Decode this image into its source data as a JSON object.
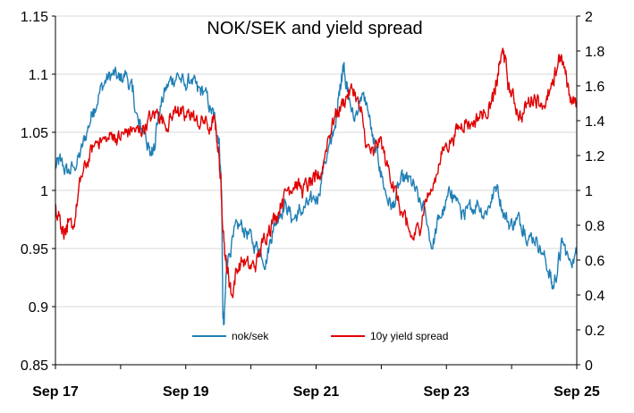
{
  "chart_data": {
    "type": "line",
    "title": "NOK/SEK and yield spread",
    "grid": true,
    "legend_position": "bottom-center",
    "x_ticks": [
      "Sep 17",
      "Sep 19",
      "Sep 21",
      "Sep 23",
      "Sep 25"
    ],
    "x_range": [
      2017.67,
      2025.67
    ],
    "y_left": {
      "range": [
        0.85,
        1.15
      ],
      "ticks": [
        "0.85",
        "0.9",
        "0.95",
        "1",
        "1.05",
        "1.1",
        "1.15"
      ]
    },
    "y_right": {
      "range": [
        0,
        2
      ],
      "ticks": [
        "0",
        "0.2",
        "0.4",
        "0.6",
        "0.8",
        "1",
        "1.2",
        "1.4",
        "1.6",
        "1.8",
        "2"
      ]
    },
    "series": [
      {
        "name": "nok/sek",
        "axis": "left",
        "color": "#1f7fb5",
        "points": [
          [
            2017.67,
            1.02
          ],
          [
            2017.75,
            1.025
          ],
          [
            2017.85,
            1.015
          ],
          [
            2017.95,
            1.02
          ],
          [
            2018.05,
            1.03
          ],
          [
            2018.15,
            1.05
          ],
          [
            2018.25,
            1.07
          ],
          [
            2018.35,
            1.085
          ],
          [
            2018.45,
            1.095
          ],
          [
            2018.55,
            1.1
          ],
          [
            2018.65,
            1.095
          ],
          [
            2018.75,
            1.1
          ],
          [
            2018.85,
            1.085
          ],
          [
            2018.95,
            1.055
          ],
          [
            2019.05,
            1.05
          ],
          [
            2019.12,
            1.03
          ],
          [
            2019.18,
            1.04
          ],
          [
            2019.25,
            1.065
          ],
          [
            2019.35,
            1.085
          ],
          [
            2019.45,
            1.095
          ],
          [
            2019.55,
            1.1
          ],
          [
            2019.65,
            1.09
          ],
          [
            2019.75,
            1.095
          ],
          [
            2019.85,
            1.085
          ],
          [
            2019.95,
            1.085
          ],
          [
            2020.05,
            1.07
          ],
          [
            2020.12,
            1.06
          ],
          [
            2020.18,
            1.045
          ],
          [
            2020.22,
            1.0
          ],
          [
            2020.24,
            0.89
          ],
          [
            2020.26,
            0.885
          ],
          [
            2020.3,
            0.94
          ],
          [
            2020.4,
            0.96
          ],
          [
            2020.5,
            0.97
          ],
          [
            2020.6,
            0.965
          ],
          [
            2020.7,
            0.955
          ],
          [
            2020.8,
            0.95
          ],
          [
            2020.9,
            0.94
          ],
          [
            2021.0,
            0.965
          ],
          [
            2021.1,
            0.98
          ],
          [
            2021.2,
            0.99
          ],
          [
            2021.3,
            0.975
          ],
          [
            2021.4,
            0.98
          ],
          [
            2021.5,
            0.985
          ],
          [
            2021.6,
            0.99
          ],
          [
            2021.7,
            0.995
          ],
          [
            2021.8,
            1.025
          ],
          [
            2021.9,
            1.04
          ],
          [
            2022.0,
            1.07
          ],
          [
            2022.06,
            1.1
          ],
          [
            2022.1,
            1.11
          ],
          [
            2022.15,
            1.085
          ],
          [
            2022.25,
            1.06
          ],
          [
            2022.35,
            1.08
          ],
          [
            2022.45,
            1.075
          ],
          [
            2022.55,
            1.04
          ],
          [
            2022.65,
            1.02
          ],
          [
            2022.75,
            0.995
          ],
          [
            2022.85,
            0.985
          ],
          [
            2022.95,
            1.005
          ],
          [
            2023.05,
            1.01
          ],
          [
            2023.15,
            1.005
          ],
          [
            2023.25,
            0.99
          ],
          [
            2023.35,
            0.98
          ],
          [
            2023.45,
            0.95
          ],
          [
            2023.55,
            0.975
          ],
          [
            2023.65,
            0.985
          ],
          [
            2023.75,
            1.0
          ],
          [
            2023.85,
            0.99
          ],
          [
            2023.95,
            0.975
          ],
          [
            2024.05,
            0.985
          ],
          [
            2024.15,
            0.99
          ],
          [
            2024.25,
            0.98
          ],
          [
            2024.35,
            0.99
          ],
          [
            2024.45,
            1.005
          ],
          [
            2024.55,
            0.98
          ],
          [
            2024.65,
            0.97
          ],
          [
            2024.75,
            0.975
          ],
          [
            2024.85,
            0.97
          ],
          [
            2024.95,
            0.96
          ],
          [
            2025.05,
            0.96
          ],
          [
            2025.15,
            0.945
          ],
          [
            2025.25,
            0.93
          ],
          [
            2025.3,
            0.915
          ],
          [
            2025.38,
            0.935
          ],
          [
            2025.45,
            0.955
          ],
          [
            2025.55,
            0.94
          ],
          [
            2025.67,
            0.945
          ]
        ]
      },
      {
        "name": "10y yield spread",
        "axis": "right",
        "color": "#e00000",
        "points": [
          [
            2017.67,
            0.92
          ],
          [
            2017.72,
            0.88
          ],
          [
            2017.78,
            0.78
          ],
          [
            2017.85,
            0.76
          ],
          [
            2017.95,
            0.8
          ],
          [
            2018.05,
            1.05
          ],
          [
            2018.15,
            1.15
          ],
          [
            2018.25,
            1.25
          ],
          [
            2018.35,
            1.3
          ],
          [
            2018.45,
            1.28
          ],
          [
            2018.55,
            1.32
          ],
          [
            2018.65,
            1.3
          ],
          [
            2018.75,
            1.33
          ],
          [
            2018.85,
            1.35
          ],
          [
            2018.95,
            1.33
          ],
          [
            2019.05,
            1.38
          ],
          [
            2019.15,
            1.42
          ],
          [
            2019.25,
            1.45
          ],
          [
            2019.35,
            1.38
          ],
          [
            2019.45,
            1.42
          ],
          [
            2019.55,
            1.48
          ],
          [
            2019.65,
            1.4
          ],
          [
            2019.75,
            1.45
          ],
          [
            2019.85,
            1.38
          ],
          [
            2019.95,
            1.4
          ],
          [
            2020.05,
            1.35
          ],
          [
            2020.12,
            1.4
          ],
          [
            2020.18,
            1.2
          ],
          [
            2020.22,
            0.95
          ],
          [
            2020.28,
            0.6
          ],
          [
            2020.33,
            0.5
          ],
          [
            2020.38,
            0.4
          ],
          [
            2020.45,
            0.55
          ],
          [
            2020.55,
            0.6
          ],
          [
            2020.65,
            0.55
          ],
          [
            2020.75,
            0.58
          ],
          [
            2020.85,
            0.7
          ],
          [
            2020.95,
            0.8
          ],
          [
            2021.05,
            0.85
          ],
          [
            2021.15,
            0.95
          ],
          [
            2021.25,
            1.02
          ],
          [
            2021.35,
            1.05
          ],
          [
            2021.45,
            1.0
          ],
          [
            2021.55,
            1.03
          ],
          [
            2021.65,
            1.05
          ],
          [
            2021.75,
            1.1
          ],
          [
            2021.85,
            1.3
          ],
          [
            2021.95,
            1.42
          ],
          [
            2022.05,
            1.48
          ],
          [
            2022.15,
            1.55
          ],
          [
            2022.25,
            1.58
          ],
          [
            2022.35,
            1.45
          ],
          [
            2022.45,
            1.25
          ],
          [
            2022.55,
            1.2
          ],
          [
            2022.65,
            1.3
          ],
          [
            2022.75,
            1.15
          ],
          [
            2022.85,
            1.05
          ],
          [
            2022.95,
            0.9
          ],
          [
            2023.05,
            0.8
          ],
          [
            2023.15,
            0.72
          ],
          [
            2023.25,
            0.78
          ],
          [
            2023.35,
            0.95
          ],
          [
            2023.45,
            1.0
          ],
          [
            2023.55,
            1.15
          ],
          [
            2023.65,
            1.25
          ],
          [
            2023.75,
            1.3
          ],
          [
            2023.85,
            1.35
          ],
          [
            2023.95,
            1.4
          ],
          [
            2024.05,
            1.38
          ],
          [
            2024.15,
            1.42
          ],
          [
            2024.25,
            1.45
          ],
          [
            2024.35,
            1.5
          ],
          [
            2024.42,
            1.55
          ],
          [
            2024.48,
            1.72
          ],
          [
            2024.55,
            1.8
          ],
          [
            2024.62,
            1.6
          ],
          [
            2024.72,
            1.5
          ],
          [
            2024.82,
            1.42
          ],
          [
            2024.92,
            1.5
          ],
          [
            2025.02,
            1.55
          ],
          [
            2025.12,
            1.5
          ],
          [
            2025.22,
            1.52
          ],
          [
            2025.32,
            1.6
          ],
          [
            2025.4,
            1.78
          ],
          [
            2025.48,
            1.7
          ],
          [
            2025.56,
            1.55
          ],
          [
            2025.67,
            1.5
          ]
        ]
      }
    ]
  }
}
